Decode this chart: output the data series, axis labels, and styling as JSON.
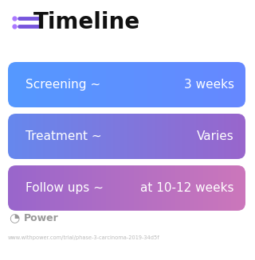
{
  "title": "Timeline",
  "background_color": "#ffffff",
  "title_fontsize": 20,
  "title_color": "#111111",
  "icon_color": "#7755dd",
  "icon_dot_color": "#aa77ff",
  "rows": [
    {
      "left_text": "Screening ~",
      "right_text": "3 weeks",
      "gradient_start": "#5599ff",
      "gradient_end": "#6688ff"
    },
    {
      "left_text": "Treatment ~",
      "right_text": "Varies",
      "gradient_start": "#6688ee",
      "gradient_end": "#9966cc"
    },
    {
      "left_text": "Follow ups ~",
      "right_text": "at 10-12 weeks",
      "gradient_start": "#9966cc",
      "gradient_end": "#cc77bb"
    }
  ],
  "row_text_color": "#ffffff",
  "row_text_fontsize": 11,
  "footer_text": "Power",
  "footer_color": "#999999",
  "url_text": "www.withpower.com/trial/phase-3-carcinoma-2019-34d5f",
  "url_color": "#bbbbbb",
  "url_fontsize": 4.8
}
